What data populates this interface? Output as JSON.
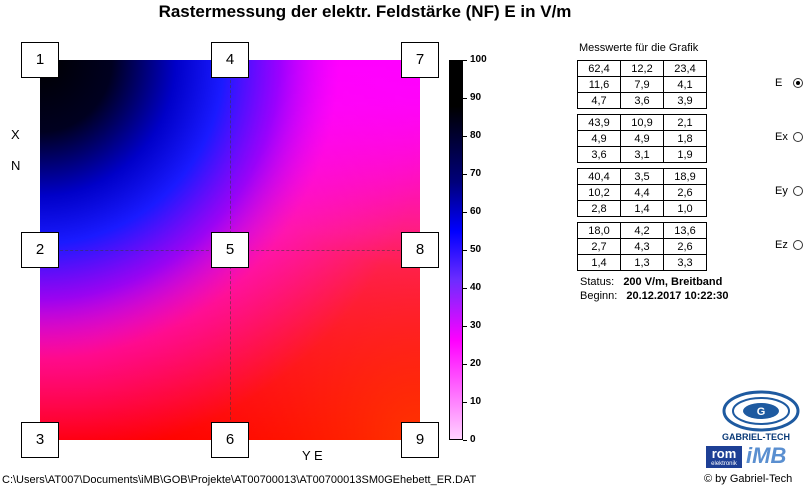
{
  "title": "Rastermessung der elektr. Feldstärke (NF) E in V/m",
  "axes": {
    "x_letter": "X",
    "n_letter": "N",
    "ye_label": "Y  E"
  },
  "points": [
    "1",
    "2",
    "3",
    "4",
    "5",
    "6",
    "7",
    "8",
    "9"
  ],
  "scale": {
    "ticks": [
      "100",
      "90",
      "80",
      "70",
      "60",
      "50",
      "40",
      "30",
      "20",
      "10",
      "0"
    ]
  },
  "panel": {
    "title": "Messwerte für die Grafik",
    "groups": [
      {
        "label": "E",
        "selected": true,
        "rows": [
          [
            "62,4",
            "12,2",
            "23,4"
          ],
          [
            "11,6",
            "7,9",
            "4,1"
          ],
          [
            "4,7",
            "3,6",
            "3,9"
          ]
        ]
      },
      {
        "label": "Ex",
        "selected": false,
        "rows": [
          [
            "43,9",
            "10,9",
            "2,1"
          ],
          [
            "4,9",
            "4,9",
            "1,8"
          ],
          [
            "3,6",
            "3,1",
            "1,9"
          ]
        ]
      },
      {
        "label": "Ey",
        "selected": false,
        "rows": [
          [
            "40,4",
            "3,5",
            "18,9"
          ],
          [
            "10,2",
            "4,4",
            "2,6"
          ],
          [
            "2,8",
            "1,4",
            "1,0"
          ]
        ]
      },
      {
        "label": "Ez",
        "selected": false,
        "rows": [
          [
            "18,0",
            "4,2",
            "13,6"
          ],
          [
            "2,7",
            "4,3",
            "2,6"
          ],
          [
            "1,4",
            "1,3",
            "3,3"
          ]
        ]
      }
    ],
    "status_label": "Status:",
    "status_value": "200 V/m, Breitband",
    "begin_label": "Beginn:",
    "begin_value": "20.12.2017 10:22:30"
  },
  "filepath": "C:\\Users\\AT007\\Documents\\iMB\\GOB\\Projekte\\AT00700013\\AT00700013SM0GEhebett_ER.DAT",
  "logo": {
    "name": "GABRIEL-TECH",
    "rom": "rom",
    "rom_sub": "elektronik",
    "imb": "iMB",
    "byline": "© by Gabriel-Tech"
  },
  "colors": {
    "heat_high": "#000000",
    "heat_mid": "#0000ff",
    "heat_low": "#ff00ff",
    "heat_floor": "#ff0000"
  }
}
